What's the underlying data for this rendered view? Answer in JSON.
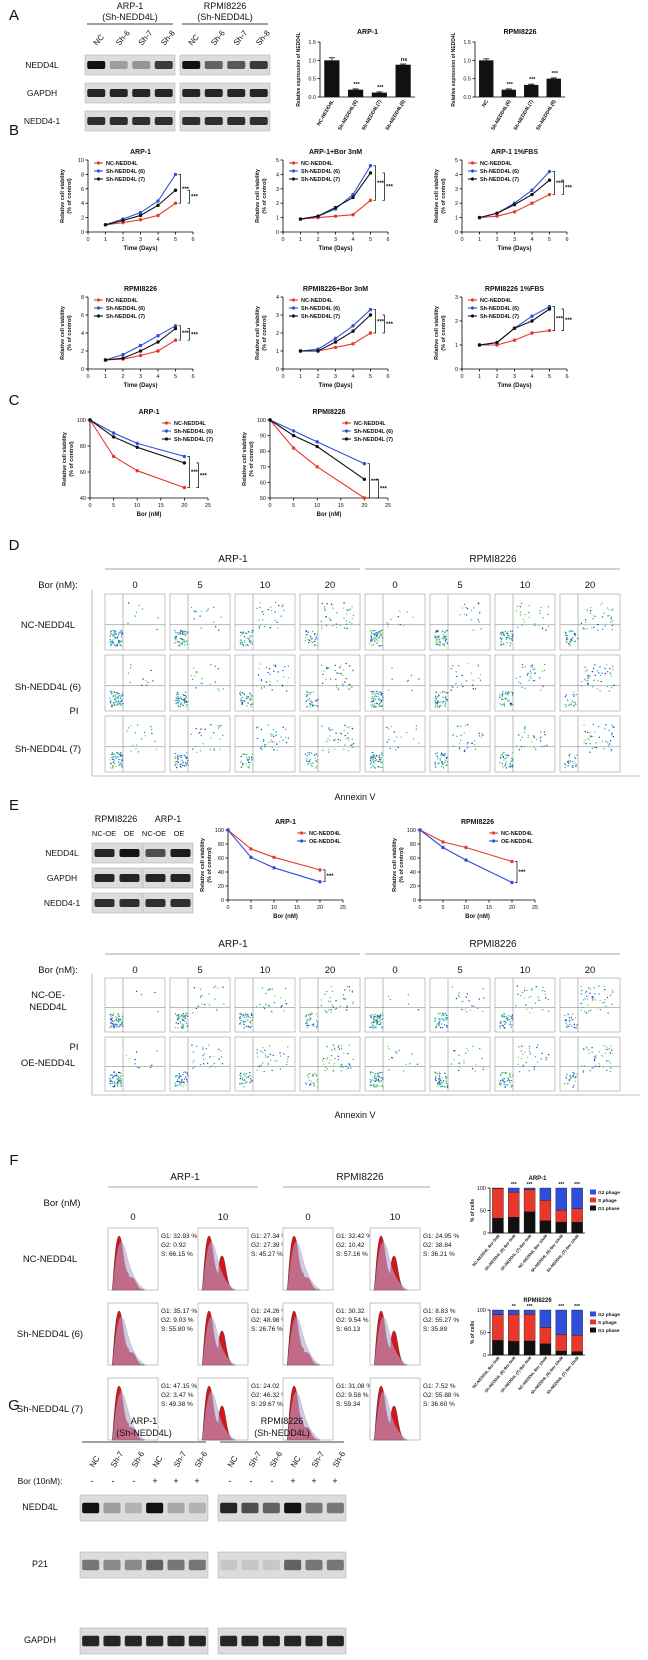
{
  "panels": [
    "A",
    "B",
    "C",
    "D",
    "E",
    "F",
    "G"
  ],
  "blot_A": {
    "headers": [
      [
        "ARP-1",
        "(Sh-NEDD4L)"
      ],
      [
        "RPMI8226",
        "(Sh-NEDD4L)"
      ]
    ],
    "lanes": [
      [
        "NC",
        "Sh-6",
        "Sh-7",
        "Sh-8"
      ],
      [
        "NC",
        "Sh-6",
        "Sh-7",
        "Sh-8"
      ]
    ],
    "rows": [
      "NEDD4L",
      "GAPDH",
      "NEDD4-1"
    ]
  },
  "flow_D": {
    "groups": [
      "ARP-1",
      "RPMI8226"
    ],
    "dose_label": "Bor (nM):",
    "doses": [
      "0",
      "5",
      "10",
      "20"
    ],
    "rows": [
      "NC-NEDD4L",
      "Sh-NEDD4L (6)",
      "Sh-NEDD4L (7)"
    ],
    "y_label": "PI",
    "x_label": "Annexin V"
  },
  "blot_E": {
    "headers": [
      "RPMI8226",
      "ARP-1"
    ],
    "lanes": [
      "NC-OE",
      "OE",
      "NC-OE",
      "OE"
    ],
    "rows": [
      "NEDD4L",
      "GAPDH",
      "NEDD4-1"
    ]
  },
  "flow_E": {
    "groups": [
      "ARP-1",
      "RPMI8226"
    ],
    "dose_label": "Bor (nM):",
    "doses": [
      "0",
      "5",
      "10",
      "20"
    ],
    "rows": [
      [
        "NC-OE-",
        "NEDD4L"
      ],
      [
        "OE-NEDD4L"
      ]
    ],
    "y_label": "PI",
    "x_label": "Annexin V"
  },
  "cycle_F": {
    "groups": [
      "ARP-1",
      "RPMI8226"
    ],
    "dose_label": "Bor (nM)",
    "doses": [
      "0",
      "10"
    ],
    "rows": [
      "NC-NEDD4L",
      "Sh-NEDD4L (6)",
      "Sh-NEDD4L (7)"
    ],
    "stats": [
      [
        [
          [
            "G1: 32.93 %",
            "G2: 0.92",
            "S: 66.15 %"
          ],
          [
            "G1: 27.34 %",
            "G2: 27.39 %",
            "S: 45.27 %"
          ]
        ],
        [
          [
            "G1: 35.17 %",
            "G2: 9.03 %",
            "S: 55.80 %"
          ],
          [
            "G1: 24.26 %",
            "G2: 48.98 %",
            "S: 26.76 %"
          ]
        ],
        [
          [
            "G1: 47.15 %",
            "G2: 3.47 %",
            "S: 49.38 %"
          ],
          [
            "G1: 24.02",
            "G2: 46.32 %",
            "S: 29.67 %"
          ]
        ]
      ],
      [
        [
          [
            "G1: 32.42 %",
            "G2: 10.42",
            "S: 57.16 %"
          ],
          [
            "G1: 24.95 %",
            "G2: 38.84",
            "S: 36.21 %"
          ]
        ],
        [
          [
            "G1: 30.32",
            "G2: 9.54 %",
            "S: 60.13"
          ],
          [
            "G1: 8.83 %",
            "G2: 55.27 %",
            "S: 35.89"
          ]
        ],
        [
          [
            "G1: 31.08 %",
            "G2: 9.58 %",
            "S: 59.34"
          ],
          [
            "G1: 7.52 %",
            "G2: 55.88 %",
            "S: 36.60 %"
          ]
        ]
      ]
    ]
  },
  "blot_G": {
    "headers": [
      [
        "ARP-1",
        "(Sh-NEDD4L)"
      ],
      [
        "RPMI8226",
        "(Sh-NEDD4L)"
      ]
    ],
    "lanes": [
      [
        "NC",
        "Sh-7",
        "Sh-6",
        "NC",
        "Sh-7",
        "Sh-6"
      ],
      [
        "NC",
        "Sh-7",
        "Sh-6",
        "NC",
        "Sh-7",
        "Sh-6"
      ]
    ],
    "bor_label": "Bor (10nM):",
    "bor_signs": [
      "-",
      "-",
      "-",
      "+",
      "+",
      "+"
    ],
    "rows": [
      "NEDD4L",
      "P21",
      "GAPDH"
    ]
  },
  "chart_data": [
    {
      "type": "bar",
      "title": "ARP-1",
      "ylabel": "Relative expression of NEDD4L",
      "categories": [
        "NC-NEDD4L",
        "Sh-NEDD4L(6)",
        "Sh-NEDD4L(7)",
        "Sh-NEDD4L(8)"
      ],
      "values": [
        1.0,
        0.2,
        0.12,
        0.88
      ],
      "errors": [
        0.07,
        0.02,
        0.02,
        0.02
      ],
      "significance": [
        null,
        "***",
        "***",
        "ns"
      ],
      "color": "#111111",
      "ylim": [
        0,
        1.5
      ],
      "yticks": [
        {
          "value": 0,
          "label": "0.0"
        },
        0.5,
        {
          "value": 1,
          "label": "1.0"
        },
        1.5
      ]
    },
    {
      "type": "bar",
      "title": "RPMI8226",
      "ylabel": "Relative expression of NEDD4L",
      "categories": [
        "NC",
        "Sh-NEDD4L(6)",
        "Sh-NEDD4L(7)",
        "Sh-NEDD4L(8)"
      ],
      "values": [
        1.0,
        0.2,
        0.33,
        0.5
      ],
      "errors": [
        0.04,
        0.02,
        0.02,
        0.02
      ],
      "significance": [
        null,
        "***",
        "***",
        "***"
      ],
      "color": "#111111",
      "ylim": [
        0,
        1.5
      ],
      "yticks": [
        {
          "value": 0,
          "label": "0.0"
        },
        0.5,
        {
          "value": 1,
          "label": "1.0"
        },
        1.5
      ]
    },
    {
      "type": "line",
      "title": "ARP-1",
      "xlabel": "Time (Days)",
      "ylabel": [
        "Relative cell viability",
        "(% of control)"
      ],
      "x": [
        1,
        2,
        3,
        4,
        5
      ],
      "series": [
        {
          "name": "NC-NEDD4L",
          "color": "#e8382c",
          "values": [
            1,
            1.3,
            1.7,
            2.3,
            4.0
          ]
        },
        {
          "name": "Sh-NEDD4L (6)",
          "color": "#2f4fd8",
          "values": [
            1,
            1.8,
            2.7,
            4.3,
            8.0
          ]
        },
        {
          "name": "Sh-NEDD4L (7)",
          "color": "#111111",
          "values": [
            1,
            1.6,
            2.3,
            3.7,
            5.8
          ]
        }
      ],
      "xlim": [
        0,
        6
      ],
      "xticks": [
        0,
        1,
        2,
        3,
        4,
        5,
        6
      ],
      "ylim": [
        0,
        10
      ],
      "yticks": [
        0,
        2,
        4,
        6,
        8,
        10
      ],
      "legend": "upper left",
      "significance": [
        "***",
        "***"
      ]
    },
    {
      "type": "line",
      "title": "ARP-1+Bor 3nM",
      "xlabel": "Time (Days)",
      "ylabel": [
        "Relative cell viability",
        "(% of control)"
      ],
      "x": [
        1,
        2,
        3,
        4,
        5
      ],
      "series": [
        {
          "name": "NC-NEDD4L",
          "color": "#e8382c",
          "values": [
            0.9,
            1.0,
            1.1,
            1.2,
            2.2
          ]
        },
        {
          "name": "Sh-NEDD4L (6)",
          "color": "#2f4fd8",
          "values": [
            0.9,
            1.1,
            1.6,
            2.6,
            4.6
          ]
        },
        {
          "name": "Sh-NEDD4L (7)",
          "color": "#111111",
          "values": [
            0.9,
            1.1,
            1.7,
            2.4,
            4.1
          ]
        }
      ],
      "xlim": [
        0,
        6
      ],
      "xticks": [
        0,
        1,
        2,
        3,
        4,
        5,
        6
      ],
      "ylim": [
        0,
        5
      ],
      "yticks": [
        0,
        1,
        2,
        3,
        4,
        5
      ],
      "legend": "upper left",
      "significance": [
        "***",
        "***"
      ]
    },
    {
      "type": "line",
      "title": "ARP-1 1%FBS",
      "xlabel": "Time (Days)",
      "ylabel": [
        "Relative cell viability",
        "(% of control)"
      ],
      "x": [
        1,
        2,
        3,
        4,
        5
      ],
      "series": [
        {
          "name": "NC-NEDD4L",
          "color": "#e8382c",
          "values": [
            1.0,
            1.1,
            1.4,
            2.0,
            2.6
          ]
        },
        {
          "name": "Sh-NEDD4L (6)",
          "color": "#2f4fd8",
          "values": [
            1.0,
            1.3,
            2.0,
            2.9,
            4.2
          ]
        },
        {
          "name": "Sh-NEDD4L (7)",
          "color": "#111111",
          "values": [
            1.0,
            1.3,
            1.9,
            2.6,
            3.6
          ]
        }
      ],
      "xlim": [
        0,
        6
      ],
      "xticks": [
        0,
        1,
        2,
        3,
        4,
        5,
        6
      ],
      "ylim": [
        0,
        5
      ],
      "yticks": [
        0,
        1,
        2,
        3,
        4,
        5
      ],
      "legend": "upper left",
      "significance": [
        "***",
        "***"
      ]
    },
    {
      "type": "line",
      "title": "RPMI8226",
      "xlabel": "Time (Days)",
      "ylabel": [
        "Relative cell viability",
        "(% of control)"
      ],
      "x": [
        1,
        2,
        3,
        4,
        5
      ],
      "series": [
        {
          "name": "NC-NEDD4L",
          "color": "#e8382c",
          "values": [
            1,
            1.1,
            1.5,
            2.0,
            3.2
          ]
        },
        {
          "name": "Sh-NEDD4L (6)",
          "color": "#2f4fd8",
          "values": [
            1,
            1.6,
            2.6,
            3.7,
            4.8
          ]
        },
        {
          "name": "Sh-NEDD4L (7)",
          "color": "#111111",
          "values": [
            1,
            1.2,
            2.0,
            3.0,
            4.5
          ]
        }
      ],
      "xlim": [
        0,
        6
      ],
      "xticks": [
        0,
        1,
        2,
        3,
        4,
        5,
        6
      ],
      "ylim": [
        0,
        8
      ],
      "yticks": [
        0,
        2,
        4,
        6,
        8
      ],
      "legend": "upper left",
      "significance": [
        "***",
        "***"
      ]
    },
    {
      "type": "line",
      "title": "RPMI8226+Bor 3nM",
      "xlabel": "Time (Days)",
      "ylabel": [
        "Relative cell viability",
        "(% of control)"
      ],
      "x": [
        1,
        2,
        3,
        4,
        5
      ],
      "series": [
        {
          "name": "NC-NEDD4L",
          "color": "#e8382c",
          "values": [
            1,
            1.0,
            1.2,
            1.4,
            2.0
          ]
        },
        {
          "name": "Sh-NEDD4L (6)",
          "color": "#2f4fd8",
          "values": [
            1,
            1.1,
            1.7,
            2.4,
            3.3
          ]
        },
        {
          "name": "Sh-NEDD4L (7)",
          "color": "#111111",
          "values": [
            1,
            1.0,
            1.5,
            2.1,
            3.0
          ]
        }
      ],
      "xlim": [
        0,
        6
      ],
      "xticks": [
        0,
        1,
        2,
        3,
        4,
        5,
        6
      ],
      "ylim": [
        0,
        4
      ],
      "yticks": [
        0,
        1,
        2,
        3,
        4
      ],
      "legend": "upper left",
      "significance": [
        "***",
        "***"
      ]
    },
    {
      "type": "line",
      "title": "RPMI8226 1%FBS",
      "xlabel": "Time (Days)",
      "ylabel": [
        "Relative cell viability",
        "(% of control)"
      ],
      "x": [
        1,
        2,
        3,
        4,
        5
      ],
      "series": [
        {
          "name": "NC-NEDD4L",
          "color": "#e8382c",
          "values": [
            1,
            1.0,
            1.2,
            1.5,
            1.6
          ]
        },
        {
          "name": "Sh-NEDD4L (6)",
          "color": "#2f4fd8",
          "values": [
            1,
            1.1,
            1.7,
            2.2,
            2.6
          ]
        },
        {
          "name": "Sh-NEDD4L (7)",
          "color": "#111111",
          "values": [
            1,
            1.1,
            1.7,
            2.0,
            2.5
          ]
        }
      ],
      "xlim": [
        0,
        6
      ],
      "xticks": [
        0,
        1,
        2,
        3,
        4,
        5,
        6
      ],
      "ylim": [
        0,
        3
      ],
      "yticks": [
        0,
        1,
        2,
        3
      ],
      "legend": "upper left",
      "significance": [
        "***",
        "***"
      ]
    },
    {
      "type": "line",
      "title": "ARP-1",
      "xlabel": "Bor (nM)",
      "ylabel": [
        "Relative cell viability",
        "(% of control)"
      ],
      "x": [
        0,
        5,
        10,
        20
      ],
      "series": [
        {
          "name": "NC-NEDD4L",
          "color": "#e8382c",
          "values": [
            100,
            72,
            61,
            48
          ]
        },
        {
          "name": "Sh-NEDD4L (6)",
          "color": "#2f4fd8",
          "values": [
            100,
            90,
            82,
            72
          ]
        },
        {
          "name": "Sh-NEDD4L (7)",
          "color": "#111111",
          "values": [
            100,
            87,
            79,
            67
          ]
        }
      ],
      "xlim": [
        0,
        25
      ],
      "xticks": [
        0,
        5,
        10,
        15,
        20,
        25
      ],
      "ylim": [
        40,
        100
      ],
      "yticks": [
        40,
        60,
        80,
        100
      ],
      "legend": "upper right",
      "significance": [
        "***",
        "***"
      ]
    },
    {
      "type": "line",
      "title": "RPMI8226",
      "xlabel": "Bor (nM)",
      "ylabel": [
        "Relative cell viability",
        "(% of control)"
      ],
      "x": [
        0,
        5,
        10,
        20
      ],
      "series": [
        {
          "name": "NC-NEDD4L",
          "color": "#e8382c",
          "values": [
            100,
            82,
            70,
            50
          ]
        },
        {
          "name": "Sh-NEDD4L (6)",
          "color": "#2f4fd8",
          "values": [
            100,
            93,
            86,
            72
          ]
        },
        {
          "name": "Sh-NEDD4L (7)",
          "color": "#111111",
          "values": [
            100,
            90,
            83,
            62
          ]
        }
      ],
      "xlim": [
        0,
        25
      ],
      "xticks": [
        0,
        5,
        10,
        15,
        20,
        25
      ],
      "ylim": [
        50,
        100
      ],
      "yticks": [
        50,
        60,
        70,
        80,
        90,
        100
      ],
      "legend": "upper right",
      "significance": [
        "***",
        "***"
      ]
    },
    {
      "type": "line",
      "title": "ARP-1",
      "xlabel": "Bor (nM)",
      "ylabel": [
        "Relative cell viability",
        "(% of control)"
      ],
      "x": [
        0,
        5,
        10,
        20
      ],
      "series": [
        {
          "name": "NC-NEDD4L",
          "color": "#e8382c",
          "values": [
            100,
            73,
            61,
            43
          ]
        },
        {
          "name": "OE-NEDD4L",
          "color": "#2f4fd8",
          "values": [
            100,
            61,
            46,
            26
          ]
        }
      ],
      "xlim": [
        0,
        25
      ],
      "xticks": [
        0,
        5,
        10,
        15,
        20,
        25
      ],
      "ylim": [
        0,
        100
      ],
      "yticks": [
        0,
        20,
        40,
        60,
        80,
        100
      ],
      "legend": "upper right",
      "significance": [
        "***"
      ]
    },
    {
      "type": "line",
      "title": "RPMI8226",
      "xlabel": "Bor (nM)",
      "ylabel": [
        "Relative cell viability",
        "(% of control)"
      ],
      "x": [
        0,
        5,
        10,
        20
      ],
      "series": [
        {
          "name": "NC-NEDD4L",
          "color": "#e8382c",
          "values": [
            100,
            83,
            75,
            55
          ]
        },
        {
          "name": "OE-NEDD4L",
          "color": "#2f4fd8",
          "values": [
            100,
            75,
            57,
            25
          ]
        }
      ],
      "xlim": [
        0,
        25
      ],
      "xticks": [
        0,
        5,
        10,
        15,
        20,
        25
      ],
      "ylim": [
        0,
        100
      ],
      "yticks": [
        0,
        20,
        40,
        60,
        80,
        100
      ],
      "legend": "upper right",
      "significance": [
        "***"
      ]
    },
    {
      "type": "stacked_bar",
      "title": "ARP-1",
      "ylabel": "% of cells",
      "categories": [
        "NC-NEDD4L Bor 0nM",
        "Sh-NEDD4L (6) Bor 0nM",
        "Sh-NEDD4L (7) Bor 0nM",
        "NC-NEDD4L Bor 10nM",
        "Sh-NEDD4L (6) Bor 10nM",
        "Sh-NEDD4L (7) Bor 10nM"
      ],
      "series": [
        {
          "name": "G1 phase",
          "color": "#111111",
          "values": [
            32.93,
            35.17,
            47.15,
            27.34,
            24.26,
            24.02
          ]
        },
        {
          "name": "S phage",
          "color": "#e8382c",
          "values": [
            66.15,
            55.8,
            49.38,
            45.27,
            26.76,
            29.67
          ]
        },
        {
          "name": "G2 phage",
          "color": "#2f4fd8",
          "values": [
            0.92,
            9.03,
            3.47,
            27.39,
            48.98,
            46.32
          ]
        }
      ],
      "ylim": [
        0,
        100
      ],
      "yticks": [
        0,
        50,
        100
      ],
      "significance": [
        null,
        "***",
        "***",
        null,
        "***",
        "***"
      ],
      "legend": "right"
    },
    {
      "type": "stacked_bar",
      "title": "RPMI8226",
      "ylabel": "% of cells",
      "categories": [
        "NC-NEDD4L Bor 0nM",
        "Sh-NEDD4L (6) Bor 0nM",
        "Sh-NEDD4L (7) Bor 0nM",
        "NC-NEDD4L Bor 10nM",
        "Sh-NEDD4L (6) Bor 10nM",
        "Sh-NEDD4L (7) Bor 10nM"
      ],
      "series": [
        {
          "name": "G1 phase",
          "color": "#111111",
          "values": [
            32.42,
            30.32,
            31.08,
            24.95,
            8.83,
            7.52
          ]
        },
        {
          "name": "S phage",
          "color": "#e8382c",
          "values": [
            57.16,
            60.13,
            59.34,
            36.21,
            35.89,
            36.6
          ]
        },
        {
          "name": "G2 phage",
          "color": "#2f4fd8",
          "values": [
            10.42,
            9.54,
            9.58,
            38.84,
            55.27,
            55.88
          ]
        }
      ],
      "ylim": [
        0,
        100
      ],
      "yticks": [
        0,
        50,
        100
      ],
      "significance": [
        null,
        "**",
        "***",
        null,
        "***",
        "***"
      ],
      "legend": "right"
    }
  ]
}
